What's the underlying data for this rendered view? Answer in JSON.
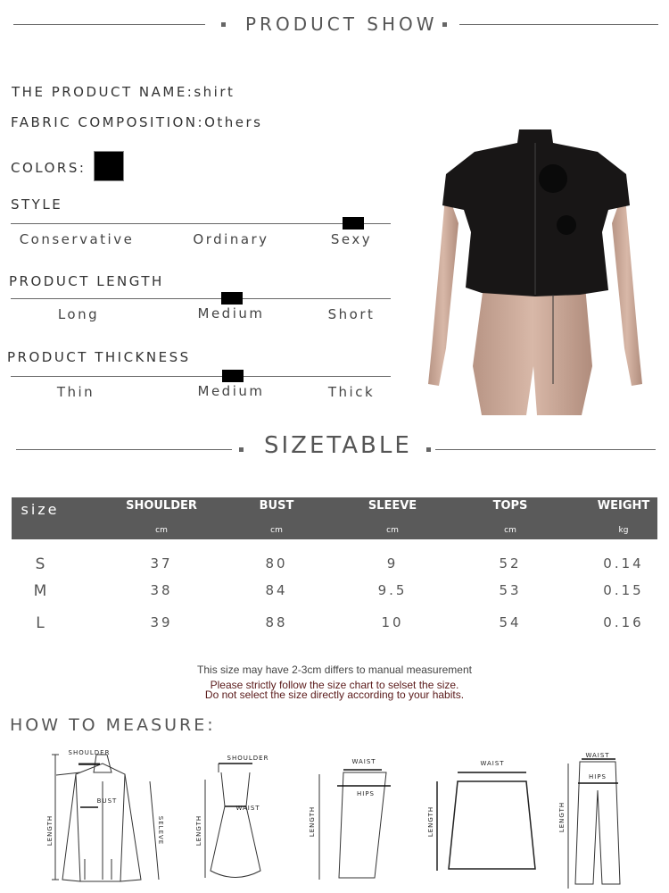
{
  "header": {
    "title": "PRODUCT SHOW"
  },
  "product": {
    "name_label": "THE PRODUCT NAME:",
    "name_value": "shirt",
    "fabric_label": "FABRIC COMPOSITION:",
    "fabric_value": "Others",
    "colors_label": "COLORS:",
    "color_swatch": "#000000"
  },
  "scales": [
    {
      "title": "STYLE",
      "options": [
        "Conservative",
        "Ordinary",
        "Sexy"
      ],
      "selected": "Sexy"
    },
    {
      "title": "PRODUCT LENGTH",
      "options": [
        "Long",
        "Medium",
        "Short"
      ],
      "selected": "Medium"
    },
    {
      "title": "PRODUCT THICKNESS",
      "options": [
        "Thin",
        "Medium",
        "Thick"
      ],
      "selected": "Medium"
    }
  ],
  "sizetable": {
    "title": "SIZETABLE",
    "columns": [
      {
        "label": "size",
        "unit": ""
      },
      {
        "label": "SHOULDER",
        "unit": "cm"
      },
      {
        "label": "BUST",
        "unit": "cm"
      },
      {
        "label": "SLEEVE",
        "unit": "cm"
      },
      {
        "label": "TOPS",
        "unit": "cm"
      },
      {
        "label": "WEIGHT",
        "unit": "kg"
      }
    ],
    "rows": [
      [
        "S",
        "37",
        "80",
        "9",
        "52",
        "0.14"
      ],
      [
        "M",
        "38",
        "84",
        "9.5",
        "53",
        "0.15"
      ],
      [
        "L",
        "39",
        "88",
        "10",
        "54",
        "0.16"
      ]
    ],
    "notes": [
      "This size may have 2-3cm differs to manual measurement",
      "Please strictly follow the size chart to selset the size.",
      "Do not select the size directly according to your habits."
    ],
    "note_color": "#5a1a1a"
  },
  "measure": {
    "title": "HOW TO MEASURE:",
    "labels": {
      "shoulder": "SHOULDER",
      "bust": "BUST",
      "length": "LENGTH",
      "sleeve": "SELEVE",
      "waist": "WAIST",
      "hips": "HIPS"
    }
  }
}
